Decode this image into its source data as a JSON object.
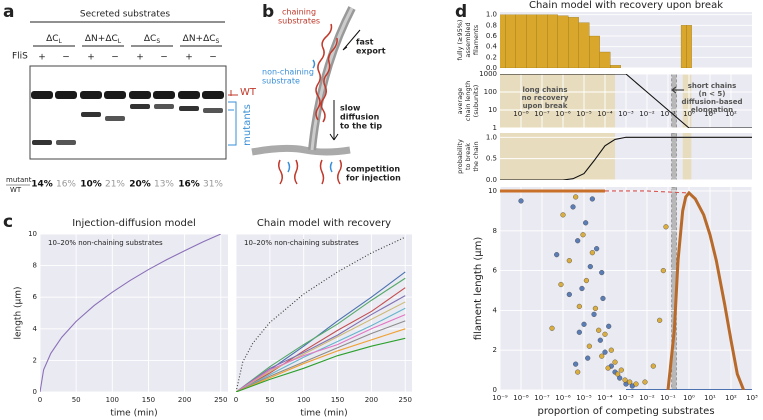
{
  "panel_labels": [
    "a",
    "b",
    "c",
    "d"
  ],
  "gel": {
    "title": "Secreted substrates",
    "groups": [
      {
        "name": "ΔC",
        "sub": "L"
      },
      {
        "name": "ΔN+ΔC",
        "sub": "L"
      },
      {
        "name": "ΔC",
        "sub": "S"
      },
      {
        "name": "ΔN+ΔC",
        "sub": "S"
      }
    ],
    "row_label": "FliS",
    "signs": [
      "+",
      "−",
      "+",
      "−",
      "+",
      "−",
      "+",
      "−"
    ],
    "wt_label": "WT",
    "mutants_label": "mutants",
    "ratio_label": [
      "mutant",
      "WT"
    ],
    "ratios": [
      "14%",
      "16%",
      "10%",
      "21%",
      "20%",
      "13%",
      "16%",
      "31%"
    ]
  },
  "diagram": {
    "chaining": [
      "chaining",
      "substrates"
    ],
    "non_chaining": [
      "non-chaining",
      "substrate"
    ],
    "fast_export": [
      "fast",
      "export"
    ],
    "slow_diffusion": [
      "slow",
      "diffusion",
      "to the tip"
    ],
    "competition": [
      "competition",
      "for injection"
    ]
  },
  "chart_data": [
    {
      "type": "line",
      "title": "Injection-diffusion model",
      "annotation": "10–20% non-chaining substrates",
      "xlabel": "time (min)",
      "ylabel": [
        "length (μm)"
      ],
      "background": "#eaeaf2",
      "grid": true,
      "xlim": [
        0,
        260
      ],
      "ylim": [
        0,
        10
      ],
      "xticks": [
        0,
        50,
        100,
        150,
        200,
        250
      ],
      "yticks": [
        0,
        2,
        4,
        6,
        8,
        10
      ],
      "series": [
        {
          "color": "#8a70b8",
          "x": [
            0,
            5,
            15,
            30,
            50,
            75,
            100,
            125,
            150,
            175,
            200,
            225,
            250
          ],
          "values": [
            0,
            1.41,
            2.45,
            3.46,
            4.47,
            5.48,
            6.32,
            7.07,
            7.75,
            8.37,
            8.94,
            9.49,
            10
          ]
        }
      ]
    },
    {
      "type": "line",
      "title": "Chain model with recovery",
      "annotation": "10–20% non-chaining substrates",
      "xlabel": "time (min)",
      "background": "#eaeaf2",
      "grid": true,
      "ytick_labels": false,
      "xlim": [
        0,
        260
      ],
      "ylim": [
        0,
        10
      ],
      "xticks": [
        0,
        50,
        100,
        150,
        200,
        250
      ],
      "yticks": [
        0,
        2,
        4,
        6,
        8,
        10
      ],
      "series": [
        {
          "color": "#333333",
          "dash": "dotted",
          "x": [
            0,
            10,
            25,
            50,
            100,
            150,
            200,
            250
          ],
          "values": [
            0,
            1.9,
            3.1,
            4.4,
            6.2,
            7.6,
            8.8,
            9.8
          ]
        },
        {
          "color": "#4c72b0",
          "x": [
            0,
            50,
            100,
            150,
            200,
            250
          ],
          "values": [
            0,
            1.4,
            2.9,
            4.5,
            6.0,
            7.6
          ]
        },
        {
          "color": "#55a868",
          "x": [
            0,
            50,
            100,
            150,
            200,
            250
          ],
          "values": [
            0,
            1.6,
            3.0,
            4.3,
            5.8,
            7.2
          ]
        },
        {
          "color": "#c44e52",
          "x": [
            0,
            50,
            100,
            150,
            200,
            250
          ],
          "values": [
            0,
            1.2,
            2.6,
            3.9,
            5.1,
            6.6
          ]
        },
        {
          "color": "#8172b2",
          "x": [
            0,
            50,
            100,
            150,
            200,
            250
          ],
          "values": [
            0,
            1.5,
            2.5,
            3.6,
            4.9,
            6.1
          ]
        },
        {
          "color": "#ccb974",
          "x": [
            0,
            50,
            100,
            150,
            200,
            250
          ],
          "values": [
            0,
            1.3,
            2.4,
            3.5,
            4.6,
            5.7
          ]
        },
        {
          "color": "#64b5cd",
          "x": [
            0,
            50,
            100,
            150,
            200,
            250
          ],
          "values": [
            0,
            1.1,
            2.2,
            3.2,
            4.2,
            5.3
          ]
        },
        {
          "color": "#e377c2",
          "x": [
            0,
            50,
            100,
            150,
            200,
            250
          ],
          "values": [
            0,
            1.4,
            2.3,
            3.0,
            4.0,
            4.9
          ]
        },
        {
          "color": "#8c8c8c",
          "x": [
            0,
            50,
            100,
            150,
            200,
            250
          ],
          "values": [
            0,
            1.0,
            1.9,
            2.8,
            3.7,
            4.5
          ]
        },
        {
          "color": "#f0a030",
          "x": [
            0,
            50,
            100,
            150,
            200,
            250
          ],
          "values": [
            0,
            0.9,
            1.8,
            2.6,
            3.3,
            4.0
          ]
        },
        {
          "color": "#2ca02c",
          "x": [
            0,
            50,
            100,
            150,
            200,
            250
          ],
          "values": [
            0,
            0.8,
            1.5,
            2.3,
            2.9,
            3.4
          ]
        }
      ]
    },
    {
      "type": "bar",
      "title": "Chain model with recovery upon break",
      "ylabel": [
        "fully (≥95%)",
        "assembled",
        "filaments"
      ],
      "background": "#eaeaf2",
      "grid": true,
      "xlog": true,
      "xlim": [
        1e-09,
        1000
      ],
      "ylim": [
        0,
        1.05
      ],
      "yticks": [
        {
          "value": 0,
          "label": "0.0"
        },
        {
          "value": 0.2,
          "label": "0.2"
        },
        {
          "value": 0.4,
          "label": "0.4"
        },
        {
          "value": 0.6,
          "label": "0.6"
        },
        {
          "value": 0.8,
          "label": "0.8"
        },
        {
          "value": 1,
          "label": "1.0"
        }
      ],
      "color": "#d9a72c",
      "x": [
        1e-09,
        3.16e-09,
        1e-08,
        3.16e-08,
        1e-07,
        3.16e-07,
        1e-06,
        3.16e-06,
        1e-05,
        3.16e-05,
        0.0001,
        0.000316,
        0.56,
        1.0
      ],
      "values": [
        1,
        1,
        1,
        1,
        1,
        1,
        0.98,
        0.95,
        0.85,
        0.6,
        0.3,
        0.05,
        0.8,
        0.8
      ]
    },
    {
      "type": "line",
      "ylabel": [
        "average",
        "chain length",
        "(subunits)"
      ],
      "background": "#eaeaf2",
      "grid": true,
      "xlog": true,
      "ylog": true,
      "xlim": [
        1e-09,
        1000
      ],
      "ylim": [
        1,
        1000
      ],
      "xtick_labels": "inside",
      "xticks": [
        {
          "value": 1e-08,
          "label": "10⁻⁸"
        },
        {
          "value": 1e-07,
          "label": "10⁻⁷"
        },
        {
          "value": 1e-06,
          "label": "10⁻⁶"
        },
        {
          "value": 1e-05,
          "label": "10⁻⁵"
        },
        {
          "value": 0.0001,
          "label": "10⁻⁴"
        },
        {
          "value": 0.001,
          "label": "10⁻³"
        },
        {
          "value": 0.01,
          "label": "10⁻²"
        },
        {
          "value": 0.1,
          "label": "10⁻¹"
        },
        {
          "value": 1,
          "label": "10⁰"
        },
        {
          "value": 10,
          "label": "10¹"
        },
        {
          "value": 100,
          "label": "10²"
        }
      ],
      "yticks": [
        1,
        10,
        100,
        1000
      ],
      "shaded_regions": [
        [
          1e-09,
          0.0003
        ],
        [
          0.5,
          1.3
        ]
      ],
      "shade_color": "#e6d9b5",
      "reference_band": [
        0.15,
        0.25
      ],
      "annotations": [
        [
          "long chains",
          "no recovery",
          "upon break"
        ],
        [
          "short chains",
          "(n < 5)",
          "diffusion-based",
          "elongation"
        ]
      ],
      "series": [
        {
          "color": "#111111",
          "x": [
            1e-09,
            0.001,
            0.01,
            0.1,
            1,
            1000
          ],
          "values": [
            1000,
            1000,
            100,
            10,
            1,
            1
          ]
        }
      ]
    },
    {
      "type": "line",
      "ylabel": [
        "probability",
        "to break",
        "the chain"
      ],
      "background": "#eaeaf2",
      "grid": true,
      "xlog": true,
      "xlim": [
        1e-09,
        1000
      ],
      "ylim": [
        0,
        1.1
      ],
      "yticks": [
        {
          "value": 0,
          "label": "0.0"
        },
        {
          "value": 0.5,
          "label": "0.5"
        },
        {
          "value": 1,
          "label": "1.0"
        }
      ],
      "shaded_regions": [
        [
          1e-09,
          0.0003
        ],
        [
          0.5,
          1.3
        ]
      ],
      "shade_color": "#e6d9b5",
      "reference_band": [
        0.15,
        0.25
      ],
      "series": [
        {
          "color": "#111111",
          "x": [
            1e-09,
            1e-06,
            3e-06,
            1e-05,
            3e-05,
            0.0001,
            0.0003,
            0.001,
            1000
          ],
          "values": [
            0,
            0,
            0.03,
            0.15,
            0.45,
            0.8,
            0.95,
            1,
            1
          ]
        }
      ]
    },
    {
      "type": "scatter",
      "xlabel": "proportion of competing substrates",
      "ylabel": [
        "filament length (μm)"
      ],
      "background": "#eaeaf2",
      "grid": true,
      "xlog": true,
      "xlim": [
        1e-09,
        1000
      ],
      "ylim": [
        0,
        10.2
      ],
      "reference_band": [
        0.15,
        0.25
      ],
      "xticks": [
        {
          "value": 1e-09,
          "label": "10⁻⁹"
        },
        {
          "value": 1e-08,
          "label": "10⁻⁸"
        },
        {
          "value": 1e-07,
          "label": "10⁻⁷"
        },
        {
          "value": 1e-06,
          "label": "10⁻⁶"
        },
        {
          "value": 1e-05,
          "label": "10⁻⁵"
        },
        {
          "value": 0.0001,
          "label": "10⁻⁴"
        },
        {
          "value": 0.001,
          "label": "10⁻³"
        },
        {
          "value": 0.01,
          "label": "10⁻²"
        },
        {
          "value": 0.1,
          "label": "10⁻¹"
        },
        {
          "value": 1,
          "label": "10⁰"
        },
        {
          "value": 10,
          "label": "10¹"
        },
        {
          "value": 100,
          "label": "10²"
        },
        {
          "value": 1000,
          "label": "10³"
        }
      ],
      "yticks": [
        0,
        2,
        4,
        6,
        8,
        10
      ],
      "series": [
        {
          "color": "#4c72b0",
          "x": [
            3e-06,
            5e-06,
            8e-06,
            1.2e-05,
            2e-05,
            3e-05,
            4e-05,
            6e-05,
            8e-05,
            0.0001,
            0.00015,
            0.0002,
            0.0003,
            0.0005,
            0.001,
            2e-06,
            6e-06,
            1.5e-05,
            2.5e-05,
            1e-08,
            5e-07,
            4e-06,
            7e-05,
            1e-05,
            0.002
          ],
          "values": [
            9.2,
            7.5,
            5.1,
            8.4,
            6.2,
            3.8,
            7.1,
            2.5,
            4.6,
            1.9,
            3.2,
            1.2,
            0.9,
            0.6,
            0.3,
            4.8,
            2.9,
            1.6,
            9.6,
            9.5,
            6.8,
            1.3,
            5.9,
            3.3,
            0.2
          ]
        },
        {
          "color": "#d9a72c",
          "x": [
            1e-06,
            2e-06,
            4e-06,
            6e-06,
            9e-06,
            1.3e-05,
            1.8e-05,
            2.5e-05,
            3.5e-05,
            5e-05,
            7e-05,
            0.0001,
            0.00014,
            0.0002,
            0.0003,
            0.0004,
            0.0006,
            0.0009,
            0.0015,
            0.003,
            0.008,
            0.02,
            0.04,
            0.06,
            0.08,
            3e-07,
            8e-07,
            5e-06
          ],
          "values": [
            8.8,
            6.5,
            9.7,
            4.2,
            7.8,
            5.5,
            2.2,
            6.9,
            4.1,
            3.0,
            1.7,
            2.8,
            1.1,
            2.0,
            1.4,
            0.8,
            1.0,
            0.5,
            0.4,
            0.3,
            0.4,
            1.2,
            3.5,
            6.0,
            8.2,
            3.1,
            5.3,
            0.9
          ]
        },
        {
          "type": "line",
          "color": "#c8702a",
          "width": 3,
          "x": [
            1e-09,
            0.0001
          ],
          "values": [
            10,
            10
          ]
        },
        {
          "type": "line",
          "color": "#4c72b0",
          "width": 2,
          "x": [
            0.001,
            1000
          ],
          "values": [
            0,
            0
          ]
        },
        {
          "type": "line",
          "color": "#d9534f",
          "dash": "dashed",
          "x": [
            0.0001,
            0.01,
            1,
            2
          ],
          "values": [
            10,
            10,
            9.9,
            9.6
          ]
        },
        {
          "type": "line",
          "color": "#b86a2a",
          "width": 3,
          "x": [
            0.1,
            0.2,
            0.3,
            0.5,
            0.7,
            1,
            2,
            5,
            10,
            20,
            50,
            100,
            200,
            400
          ],
          "values": [
            0,
            3,
            6.5,
            9,
            9.7,
            9.9,
            9.6,
            8.8,
            7.8,
            6.5,
            4.3,
            2.5,
            0.8,
            0
          ]
        }
      ]
    }
  ]
}
